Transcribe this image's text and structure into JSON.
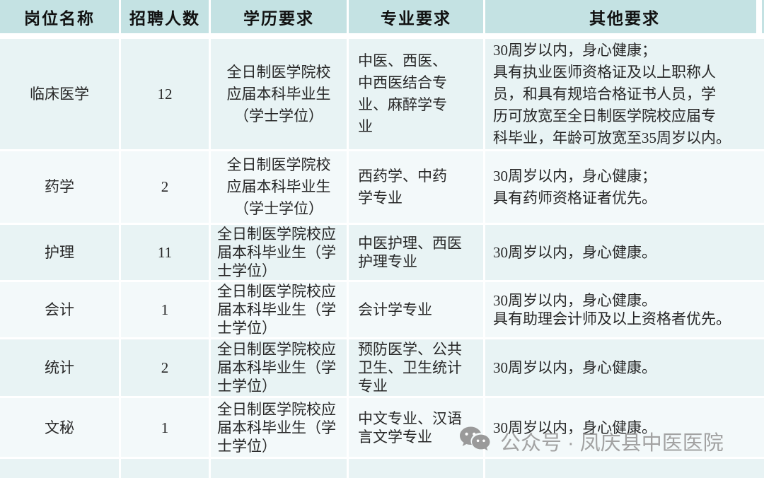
{
  "table": {
    "columns": [
      "岗位名称",
      "招聘人数",
      "学历要求",
      "专业要求",
      "其他要求"
    ],
    "rows": [
      {
        "position": "临床医学",
        "count": "12",
        "education": "全日制医学院校\n应届本科毕业生\n（学士学位）",
        "specialty": "中医、西医、\n中西医结合专\n业、麻醉学专\n业",
        "other": "30周岁以内，身心健康；\n具有执业医师资格证及以上职称人\n员，和具有规培合格证书人员，学\n历可放宽至全日制医学院校应届专\n科毕业，年龄可放宽至35周岁以内。"
      },
      {
        "position": "药学",
        "count": "2",
        "education": "全日制医学院校\n应届本科毕业生\n（学士学位）",
        "specialty": "西药学、中药\n学专业",
        "other": "30周岁以内，身心健康；\n具有药师资格证者优先。"
      },
      {
        "position": "护理",
        "count": "11",
        "education": "全日制医学院校应\n届本科毕业生（学\n士学位）",
        "specialty": "中医护理、西医\n护理专业",
        "other": "30周岁以内，身心健康。"
      },
      {
        "position": "会计",
        "count": "1",
        "education": "全日制医学院校应\n届本科毕业生（学\n士学位）",
        "specialty": "会计学专业",
        "other": "30周岁以内，身心健康。\n具有助理会计师及以上资格者优先。"
      },
      {
        "position": "统计",
        "count": "2",
        "education": "全日制医学院校应\n届本科毕业生（学\n士学位）",
        "specialty": "预防医学、公共\n卫生、卫生统计\n专业",
        "other": "30周岁以内，身心健康。"
      },
      {
        "position": "文秘",
        "count": "1",
        "education": "全日制医学院校应\n届本科毕业生（学\n士学位）",
        "specialty": "中文专业、汉语\n言文学专业",
        "other": "30周岁以内，身心健康。"
      },
      {
        "position": "",
        "count": "",
        "education": "",
        "specialty": "",
        "other": ""
      }
    ]
  },
  "watermark": {
    "icon": "wechat-icon",
    "text": "公众号 · 凤庆县中医医院"
  },
  "colors": {
    "header_bg": "#c4e2e3",
    "row_odd_bg": "#e8f3f4",
    "row_even_bg": "#f3f9fa",
    "text": "#272727",
    "watermark": "#a2a2a2"
  }
}
